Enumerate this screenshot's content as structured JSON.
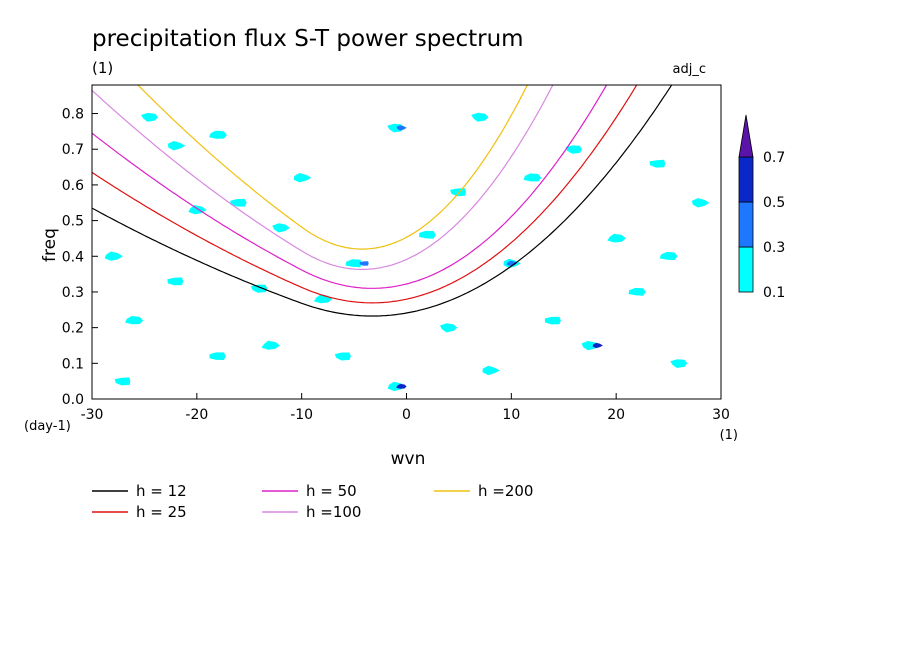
{
  "chart_data": {
    "type": "heatmap",
    "title": "precipitation flux S-T power spectrum",
    "subtitle": "(1)",
    "tag": "adj_c",
    "xlabel": "wvn",
    "ylabel": "freq",
    "x_unit": "(1)",
    "y_unit": "(day-1)",
    "xlim": [
      -30,
      30
    ],
    "ylim": [
      0.0,
      0.88
    ],
    "x_ticks": [
      "-30",
      "-20",
      "-10",
      "0",
      "10",
      "20",
      "30"
    ],
    "x_tick_values": [
      -30,
      -20,
      -10,
      0,
      10,
      20,
      30
    ],
    "y_ticks": [
      "0.0",
      "0.1",
      "0.2",
      "0.3",
      "0.4",
      "0.5",
      "0.6",
      "0.7",
      "0.8"
    ],
    "y_tick_values": [
      0.0,
      0.1,
      0.2,
      0.3,
      0.4,
      0.5,
      0.6,
      0.7,
      0.8
    ],
    "colorbar": {
      "levels": [
        "0.1",
        "0.3",
        "0.5",
        "0.7"
      ],
      "level_values": [
        0.1,
        0.3,
        0.5,
        0.7
      ],
      "colors": [
        "#00ffff",
        "#1e78ff",
        "#0a28c8",
        "#5a14aa"
      ]
    },
    "curves": [
      {
        "label": "h = 12",
        "h": 12,
        "color": "#000000"
      },
      {
        "label": "h = 25",
        "h": 25,
        "color": "#e01010"
      },
      {
        "label": "h = 50",
        "h": 50,
        "color": "#dd20c8"
      },
      {
        "label": "h =100",
        "h": 100,
        "color": "#d888e0"
      },
      {
        "label": "h =200",
        "h": 200,
        "color": "#f0c010"
      }
    ],
    "blobs": [
      {
        "x": -27.0,
        "y": 0.05,
        "level": 1
      },
      {
        "x": -24.5,
        "y": 0.79,
        "level": 1
      },
      {
        "x": -22.0,
        "y": 0.71,
        "level": 1
      },
      {
        "x": -20.0,
        "y": 0.53,
        "level": 1
      },
      {
        "x": -18.0,
        "y": 0.74,
        "level": 1
      },
      {
        "x": -16.0,
        "y": 0.55,
        "level": 1
      },
      {
        "x": -14.0,
        "y": 0.31,
        "level": 1
      },
      {
        "x": -12.0,
        "y": 0.48,
        "level": 1
      },
      {
        "x": -10.0,
        "y": 0.62,
        "level": 1
      },
      {
        "x": -8.0,
        "y": 0.28,
        "level": 1
      },
      {
        "x": -5.0,
        "y": 0.38,
        "level": 1
      },
      {
        "x": -4.0,
        "y": 0.38,
        "level": 2
      },
      {
        "x": -1.0,
        "y": 0.76,
        "level": 1
      },
      {
        "x": -0.5,
        "y": 0.76,
        "level": 2
      },
      {
        "x": -1.0,
        "y": 0.035,
        "level": 1
      },
      {
        "x": -0.5,
        "y": 0.035,
        "level": 3
      },
      {
        "x": 2.0,
        "y": 0.46,
        "level": 1
      },
      {
        "x": 5.0,
        "y": 0.58,
        "level": 1
      },
      {
        "x": 7.0,
        "y": 0.79,
        "level": 1
      },
      {
        "x": 10.0,
        "y": 0.38,
        "level": 1
      },
      {
        "x": 10.0,
        "y": 0.38,
        "level": 2
      },
      {
        "x": 12.0,
        "y": 0.62,
        "level": 1
      },
      {
        "x": 14.0,
        "y": 0.22,
        "level": 1
      },
      {
        "x": 16.0,
        "y": 0.7,
        "level": 1
      },
      {
        "x": 17.5,
        "y": 0.15,
        "level": 1
      },
      {
        "x": 18.2,
        "y": 0.15,
        "level": 3
      },
      {
        "x": 20.0,
        "y": 0.45,
        "level": 1
      },
      {
        "x": 22.0,
        "y": 0.3,
        "level": 1
      },
      {
        "x": 24.0,
        "y": 0.66,
        "level": 1
      },
      {
        "x": 26.0,
        "y": 0.1,
        "level": 1
      },
      {
        "x": 28.0,
        "y": 0.55,
        "level": 1
      },
      {
        "x": -28.0,
        "y": 0.4,
        "level": 1
      },
      {
        "x": -26.0,
        "y": 0.22,
        "level": 1
      },
      {
        "x": -18.0,
        "y": 0.12,
        "level": 1
      },
      {
        "x": -6.0,
        "y": 0.12,
        "level": 1
      },
      {
        "x": 4.0,
        "y": 0.2,
        "level": 1
      },
      {
        "x": 8.0,
        "y": 0.08,
        "level": 1
      },
      {
        "x": -13.0,
        "y": 0.15,
        "level": 1
      },
      {
        "x": 25.0,
        "y": 0.4,
        "level": 1
      },
      {
        "x": -22.0,
        "y": 0.33,
        "level": 1
      }
    ]
  }
}
